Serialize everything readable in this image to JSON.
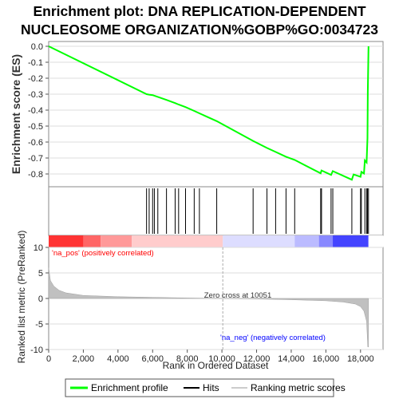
{
  "title_line1": "Enrichment plot: DNA REPLICATION-DEPENDENT",
  "title_line2": "NUCLEOSOME ORGANIZATION%GOBP%GO:0034723",
  "chart_data": {
    "type": "line",
    "es_panel": {
      "ylabel": "Enrichment score (ES)",
      "ylim": [
        -0.88,
        0.03
      ],
      "yticks": [
        "0.0",
        "-0.1",
        "-0.2",
        "-0.3",
        "-0.4",
        "-0.5",
        "-0.6",
        "-0.7",
        "-0.8"
      ],
      "ytick_values": [
        0.0,
        -0.1,
        -0.2,
        -0.3,
        -0.4,
        -0.5,
        -0.6,
        -0.7,
        -0.8
      ],
      "series": [
        {
          "name": "Enrichment profile",
          "color": "#00ff00",
          "points": [
            [
              0,
              0.0
            ],
            [
              5650,
              -0.3
            ],
            [
              5800,
              -0.303
            ],
            [
              6000,
              -0.306
            ],
            [
              6300,
              -0.317
            ],
            [
              6800,
              -0.336
            ],
            [
              7300,
              -0.356
            ],
            [
              7500,
              -0.365
            ],
            [
              7900,
              -0.381
            ],
            [
              8400,
              -0.405
            ],
            [
              8700,
              -0.42
            ],
            [
              9700,
              -0.469
            ],
            [
              11800,
              -0.593
            ],
            [
              12600,
              -0.637
            ],
            [
              13100,
              -0.662
            ],
            [
              13700,
              -0.692
            ],
            [
              14200,
              -0.712
            ],
            [
              15700,
              -0.796
            ],
            [
              15750,
              -0.778
            ],
            [
              16300,
              -0.806
            ],
            [
              16400,
              -0.782
            ],
            [
              17500,
              -0.836
            ],
            [
              17600,
              -0.803
            ],
            [
              18000,
              -0.818
            ],
            [
              18050,
              -0.787
            ],
            [
              18200,
              -0.797
            ],
            [
              18250,
              -0.715
            ],
            [
              18350,
              -0.728
            ],
            [
              18400,
              -0.575
            ],
            [
              18420,
              -0.29
            ],
            [
              18460,
              0.0
            ]
          ]
        }
      ]
    },
    "hits": [
      5650,
      5800,
      6000,
      6100,
      6300,
      6800,
      7300,
      7500,
      7900,
      8400,
      8700,
      9700,
      11800,
      12600,
      13100,
      13700,
      14200,
      15700,
      15750,
      16300,
      16400,
      17500,
      18000,
      18050,
      18250,
      18350,
      18400,
      18460
    ],
    "heatmap_colors": [
      "#ff3333",
      "#ff6666",
      "#ff9999",
      "#ffcccc",
      "#ddddff",
      "#bbbbff",
      "#8888ff",
      "#4444ff"
    ],
    "rank_panel": {
      "ylabel": "Ranked list metric (PreRanked)",
      "xlabel": "Rank in Ordered Dataset",
      "ylim": [
        -10,
        10
      ],
      "yticks": [
        "10",
        "5",
        "0",
        "-5",
        "-10"
      ],
      "ytick_values": [
        10,
        5,
        0,
        -5,
        -10
      ],
      "xlim": [
        0,
        19300
      ],
      "xticks": [
        "0",
        "2,000",
        "4,000",
        "6,000",
        "8,000",
        "10,000",
        "12,000",
        "14,000",
        "16,000",
        "18,000"
      ],
      "xtick_values": [
        0,
        2000,
        4000,
        6000,
        8000,
        10000,
        12000,
        14000,
        16000,
        18000
      ],
      "metric_profile": [
        [
          0,
          6.0
        ],
        [
          100,
          3.5
        ],
        [
          300,
          2.4
        ],
        [
          600,
          1.6
        ],
        [
          1000,
          1.1
        ],
        [
          2000,
          0.6
        ],
        [
          4000,
          0.35
        ],
        [
          6000,
          0.22
        ],
        [
          8000,
          0.1
        ],
        [
          10051,
          0.0
        ],
        [
          12000,
          -0.1
        ],
        [
          14000,
          -0.25
        ],
        [
          16000,
          -0.45
        ],
        [
          17000,
          -0.7
        ],
        [
          17700,
          -1.1
        ],
        [
          18000,
          -1.6
        ],
        [
          18200,
          -2.5
        ],
        [
          18350,
          -4.5
        ],
        [
          18420,
          -9.5
        ],
        [
          18460,
          -9.5
        ]
      ],
      "zero_cross_label": "Zero cross at 10051",
      "zero_cross": 10051,
      "pos_label": "'na_pos' (positively correlated)",
      "neg_label": "'na_neg' (negatively correlated)",
      "pos_color": "#ff0000",
      "neg_color": "#0000ff"
    },
    "legend": {
      "position": "bottom",
      "items": [
        {
          "label": "Enrichment profile",
          "color": "#00ff00"
        },
        {
          "label": "Hits",
          "color": "#000000"
        },
        {
          "label": "Ranking metric scores",
          "color": "#cccccc"
        }
      ]
    }
  }
}
